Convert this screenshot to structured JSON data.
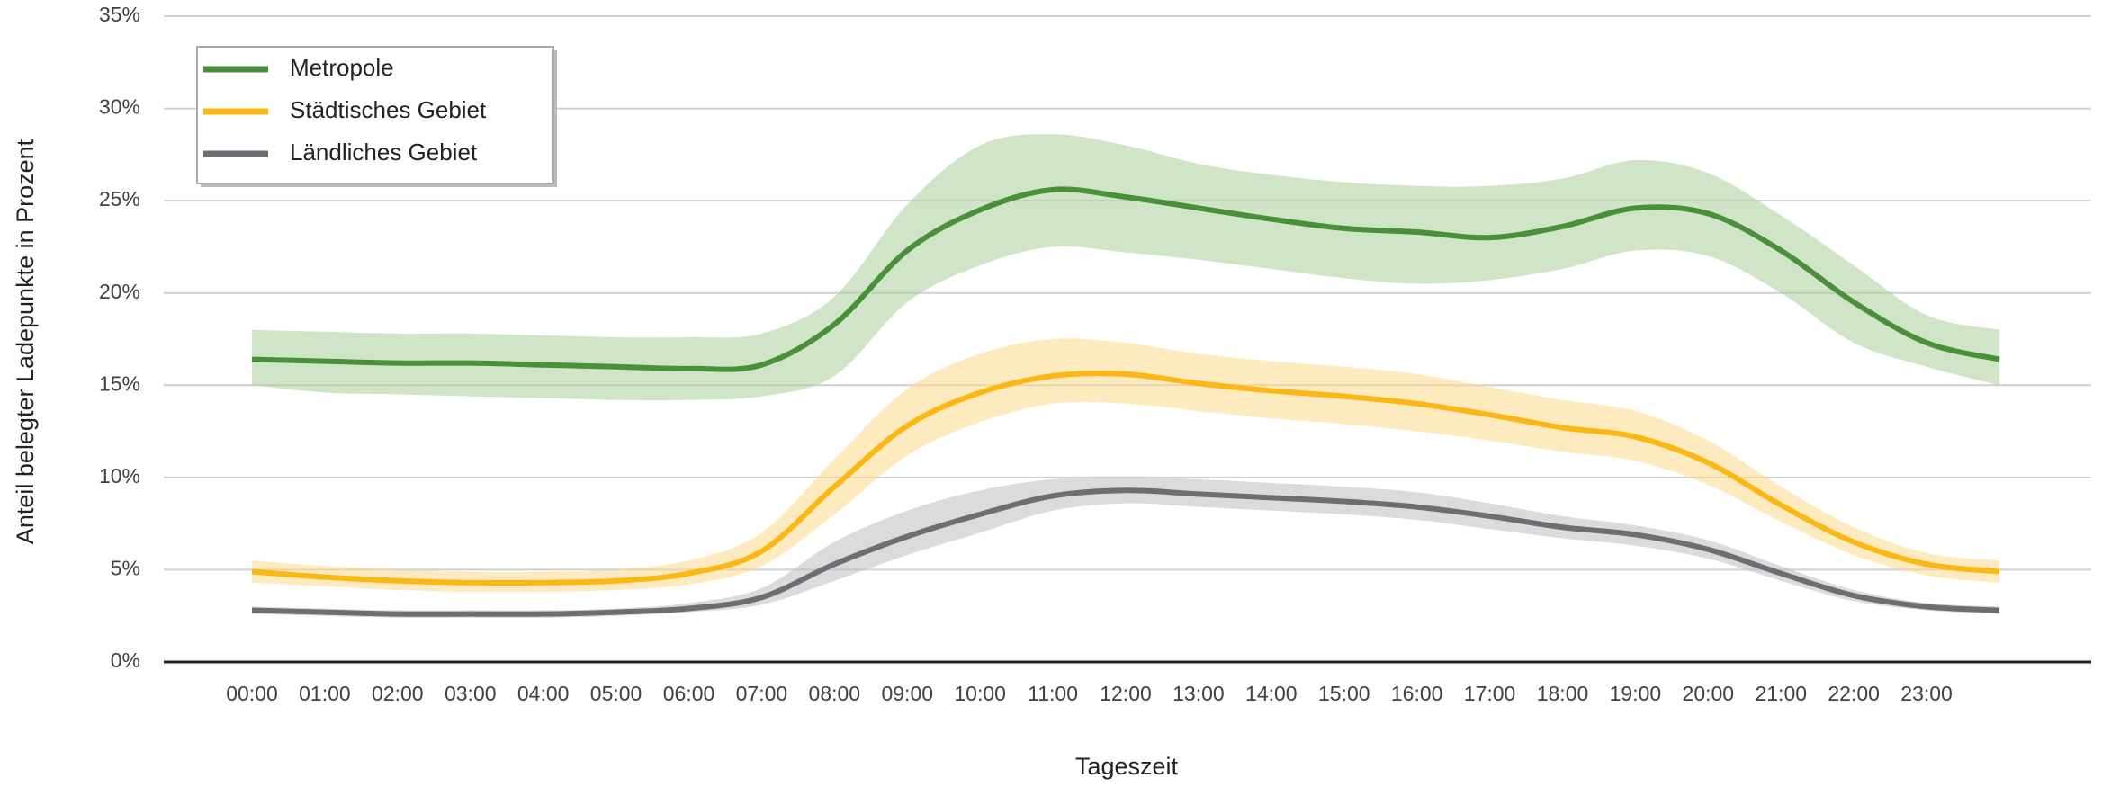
{
  "chart_data": {
    "type": "line",
    "x_label": "Tageszeit",
    "y_label": "Anteil belegter Ladepunkte in Prozent",
    "x": [
      0,
      1,
      2,
      3,
      4,
      5,
      6,
      7,
      8,
      9,
      10,
      11,
      12,
      13,
      14,
      15,
      16,
      17,
      18,
      19,
      20,
      21,
      22,
      23,
      24
    ],
    "xlim": [
      0,
      24
    ],
    "xticks": [
      {
        "value": 0,
        "label": "00:00"
      },
      {
        "value": 1,
        "label": "01:00"
      },
      {
        "value": 2,
        "label": "02:00"
      },
      {
        "value": 3,
        "label": "03:00"
      },
      {
        "value": 4,
        "label": "04:00"
      },
      {
        "value": 5,
        "label": "05:00"
      },
      {
        "value": 6,
        "label": "06:00"
      },
      {
        "value": 7,
        "label": "07:00"
      },
      {
        "value": 8,
        "label": "08:00"
      },
      {
        "value": 9,
        "label": "09:00"
      },
      {
        "value": 10,
        "label": "10:00"
      },
      {
        "value": 11,
        "label": "11:00"
      },
      {
        "value": 12,
        "label": "12:00"
      },
      {
        "value": 13,
        "label": "13:00"
      },
      {
        "value": 14,
        "label": "14:00"
      },
      {
        "value": 15,
        "label": "15:00"
      },
      {
        "value": 16,
        "label": "16:00"
      },
      {
        "value": 17,
        "label": "17:00"
      },
      {
        "value": 18,
        "label": "18:00"
      },
      {
        "value": 19,
        "label": "19:00"
      },
      {
        "value": 20,
        "label": "20:00"
      },
      {
        "value": 21,
        "label": "21:00"
      },
      {
        "value": 22,
        "label": "22:00"
      },
      {
        "value": 23,
        "label": "23:00"
      }
    ],
    "ylim": [
      0,
      35
    ],
    "yticks": [
      {
        "value": 0,
        "label": "0%"
      },
      {
        "value": 5,
        "label": "5%"
      },
      {
        "value": 10,
        "label": "10%"
      },
      {
        "value": 15,
        "label": "15%"
      },
      {
        "value": 20,
        "label": "20%"
      },
      {
        "value": 25,
        "label": "25%"
      },
      {
        "value": 30,
        "label": "30%"
      },
      {
        "value": 35,
        "label": "35%"
      }
    ],
    "grid": true,
    "legend": "upper left",
    "series": [
      {
        "name": "Metropole",
        "color": "#4a8f3a",
        "band_color": "#a9d099",
        "values": [
          16.4,
          16.3,
          16.2,
          16.2,
          16.1,
          16.0,
          15.9,
          16.1,
          18.3,
          22.3,
          24.5,
          25.6,
          25.2,
          24.6,
          24.0,
          23.5,
          23.3,
          23.0,
          23.6,
          24.6,
          24.3,
          22.3,
          19.5,
          17.3,
          16.4
        ],
        "upper": [
          18.0,
          17.9,
          17.8,
          17.8,
          17.7,
          17.6,
          17.6,
          17.8,
          19.8,
          24.8,
          28.0,
          28.6,
          28.0,
          27.0,
          26.4,
          26.0,
          25.8,
          25.8,
          26.2,
          27.2,
          26.5,
          24.2,
          21.5,
          18.8,
          18.0
        ],
        "lower": [
          15.0,
          14.6,
          14.5,
          14.4,
          14.3,
          14.2,
          14.2,
          14.4,
          15.5,
          19.5,
          21.5,
          22.5,
          22.2,
          21.8,
          21.3,
          20.8,
          20.5,
          20.7,
          21.3,
          22.3,
          22.0,
          20.0,
          17.3,
          16.0,
          15.0
        ]
      },
      {
        "name": "Städtisches Gebiet",
        "color": "#fbb714",
        "band_color": "#fcd98a",
        "values": [
          4.9,
          4.6,
          4.4,
          4.3,
          4.3,
          4.4,
          4.8,
          6.0,
          9.5,
          12.8,
          14.6,
          15.5,
          15.6,
          15.1,
          14.7,
          14.4,
          14.0,
          13.4,
          12.7,
          12.2,
          10.8,
          8.5,
          6.5,
          5.3,
          4.9
        ],
        "upper": [
          5.5,
          5.2,
          5.0,
          4.9,
          4.9,
          5.0,
          5.5,
          7.0,
          11.0,
          14.8,
          16.7,
          17.5,
          17.3,
          16.7,
          16.3,
          16.0,
          15.6,
          14.9,
          14.2,
          13.6,
          12.0,
          9.5,
          7.3,
          5.9,
          5.5
        ],
        "lower": [
          4.3,
          4.1,
          3.9,
          3.8,
          3.8,
          3.9,
          4.2,
          5.2,
          8.0,
          11.2,
          13.0,
          14.0,
          14.0,
          13.6,
          13.2,
          12.9,
          12.5,
          12.0,
          11.4,
          10.9,
          9.6,
          7.6,
          5.8,
          4.7,
          4.3
        ]
      },
      {
        "name": "Ländliches Gebiet",
        "color": "#6d6d73",
        "band_color": "#bdbdbd",
        "values": [
          2.8,
          2.7,
          2.6,
          2.6,
          2.6,
          2.7,
          2.9,
          3.5,
          5.3,
          6.8,
          8.0,
          9.0,
          9.3,
          9.1,
          8.9,
          8.7,
          8.4,
          7.9,
          7.3,
          6.9,
          6.1,
          4.8,
          3.6,
          3.0,
          2.8
        ],
        "upper": [
          3.0,
          2.9,
          2.8,
          2.8,
          2.8,
          2.9,
          3.2,
          4.0,
          6.5,
          8.2,
          9.3,
          9.9,
          10.0,
          9.9,
          9.7,
          9.5,
          9.2,
          8.6,
          7.9,
          7.4,
          6.6,
          5.2,
          3.9,
          3.2,
          3.0
        ],
        "lower": [
          2.6,
          2.5,
          2.4,
          2.4,
          2.4,
          2.5,
          2.7,
          3.1,
          4.4,
          5.8,
          7.0,
          8.2,
          8.6,
          8.4,
          8.2,
          8.0,
          7.7,
          7.2,
          6.7,
          6.3,
          5.6,
          4.4,
          3.3,
          2.8,
          2.6
        ]
      }
    ]
  }
}
